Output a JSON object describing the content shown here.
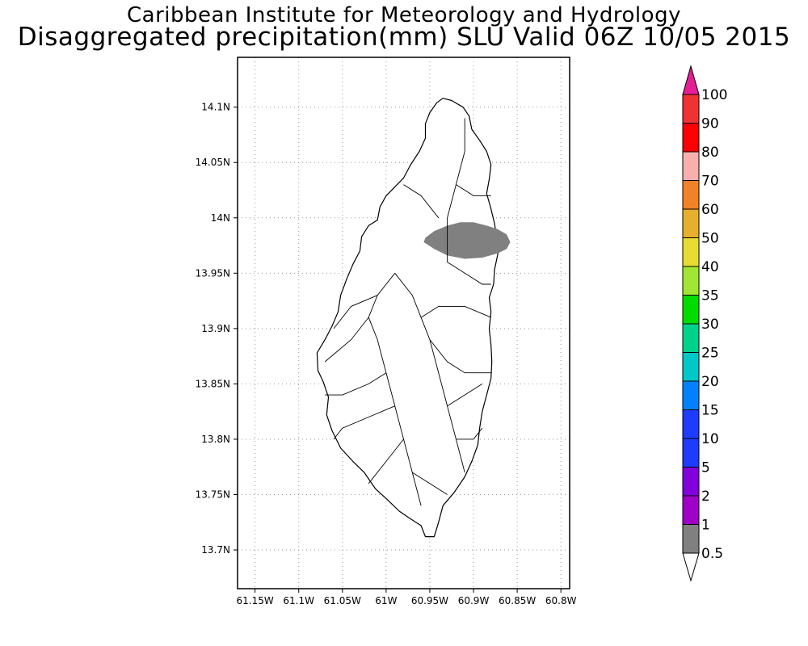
{
  "title_line1": "Caribbean Institute for Meteorology and Hydrology",
  "title_line2": "Disaggregated precipitation(mm) SLU Valid 06Z 10/05 2015",
  "map": {
    "lon_range": [
      -61.17,
      -60.79
    ],
    "lat_range": [
      13.665,
      14.145
    ],
    "lon_ticks": [
      {
        "value": -61.15,
        "label": "61.15W"
      },
      {
        "value": -61.1,
        "label": "61.1W"
      },
      {
        "value": -61.05,
        "label": "61.05W"
      },
      {
        "value": -61.0,
        "label": "61W"
      },
      {
        "value": -60.95,
        "label": "60.95W"
      },
      {
        "value": -60.9,
        "label": "60.9W"
      },
      {
        "value": -60.85,
        "label": "60.85W"
      },
      {
        "value": -60.8,
        "label": "60.8W"
      }
    ],
    "lat_ticks": [
      {
        "value": 14.1,
        "label": "14.1N"
      },
      {
        "value": 14.05,
        "label": "14.05N"
      },
      {
        "value": 14.0,
        "label": "14N"
      },
      {
        "value": 13.95,
        "label": "13.95N"
      },
      {
        "value": 13.9,
        "label": "13.9N"
      },
      {
        "value": 13.85,
        "label": "13.85N"
      },
      {
        "value": 13.8,
        "label": "13.8N"
      },
      {
        "value": 13.75,
        "label": "13.75N"
      },
      {
        "value": 13.7,
        "label": "13.7N"
      }
    ],
    "grid": "dotted",
    "island_outline": [
      [
        -60.935,
        14.108
      ],
      [
        -60.925,
        14.106
      ],
      [
        -60.912,
        14.1
      ],
      [
        -60.905,
        14.092
      ],
      [
        -60.902,
        14.08
      ],
      [
        -60.893,
        14.07
      ],
      [
        -60.885,
        14.06
      ],
      [
        -60.88,
        14.048
      ],
      [
        -60.882,
        14.035
      ],
      [
        -60.885,
        14.022
      ],
      [
        -60.88,
        14.008
      ],
      [
        -60.876,
        13.995
      ],
      [
        -60.873,
        13.98
      ],
      [
        -60.872,
        13.968
      ],
      [
        -60.876,
        13.953
      ],
      [
        -60.877,
        13.94
      ],
      [
        -60.882,
        13.928
      ],
      [
        -60.88,
        13.915
      ],
      [
        -60.882,
        13.9
      ],
      [
        -60.88,
        13.885
      ],
      [
        -60.879,
        13.87
      ],
      [
        -60.88,
        13.855
      ],
      [
        -60.885,
        13.84
      ],
      [
        -60.89,
        13.825
      ],
      [
        -60.893,
        13.81
      ],
      [
        -60.895,
        13.795
      ],
      [
        -60.902,
        13.78
      ],
      [
        -60.91,
        13.766
      ],
      [
        -60.922,
        13.752
      ],
      [
        -60.935,
        13.74
      ],
      [
        -60.94,
        13.725
      ],
      [
        -60.945,
        13.712
      ],
      [
        -60.955,
        13.712
      ],
      [
        -60.96,
        13.722
      ],
      [
        -60.972,
        13.728
      ],
      [
        -60.985,
        13.735
      ],
      [
        -60.998,
        13.745
      ],
      [
        -61.012,
        13.755
      ],
      [
        -61.025,
        13.77
      ],
      [
        -61.038,
        13.78
      ],
      [
        -61.052,
        13.792
      ],
      [
        -61.062,
        13.808
      ],
      [
        -61.068,
        13.822
      ],
      [
        -61.066,
        13.838
      ],
      [
        -61.072,
        13.852
      ],
      [
        -61.078,
        13.862
      ],
      [
        -61.079,
        13.878
      ],
      [
        -61.07,
        13.89
      ],
      [
        -61.062,
        13.902
      ],
      [
        -61.055,
        13.915
      ],
      [
        -61.052,
        13.93
      ],
      [
        -61.045,
        13.945
      ],
      [
        -61.038,
        13.958
      ],
      [
        -61.03,
        13.97
      ],
      [
        -61.028,
        13.983
      ],
      [
        -61.02,
        13.993
      ],
      [
        -61.01,
        13.998
      ],
      [
        -61.007,
        14.01
      ],
      [
        -61.0,
        14.02
      ],
      [
        -60.99,
        14.028
      ],
      [
        -60.98,
        14.036
      ],
      [
        -60.972,
        14.048
      ],
      [
        -60.962,
        14.06
      ],
      [
        -60.955,
        14.072
      ],
      [
        -60.955,
        14.085
      ],
      [
        -60.95,
        14.095
      ],
      [
        -60.942,
        14.104
      ]
    ],
    "precip_area": {
      "class_mm": "0.5-1",
      "color": "#808080",
      "polygon": [
        [
          -60.955,
          13.982
        ],
        [
          -60.945,
          13.988
        ],
        [
          -60.93,
          13.993
        ],
        [
          -60.915,
          13.996
        ],
        [
          -60.9,
          13.996
        ],
        [
          -60.885,
          13.993
        ],
        [
          -60.873,
          13.99
        ],
        [
          -60.862,
          13.985
        ],
        [
          -60.858,
          13.978
        ],
        [
          -60.862,
          13.972
        ],
        [
          -60.872,
          13.968
        ],
        [
          -60.89,
          13.964
        ],
        [
          -60.91,
          13.963
        ],
        [
          -60.93,
          13.966
        ],
        [
          -60.945,
          13.972
        ],
        [
          -60.957,
          13.978
        ]
      ]
    },
    "rivers": [
      [
        [
          -60.99,
          13.95
        ],
        [
          -60.97,
          13.93
        ],
        [
          -60.96,
          13.91
        ],
        [
          -60.95,
          13.89
        ]
      ],
      [
        [
          -60.99,
          13.95
        ],
        [
          -61.01,
          13.93
        ],
        [
          -61.02,
          13.91
        ],
        [
          -61.01,
          13.89
        ],
        [
          -61.0,
          13.86
        ]
      ],
      [
        [
          -60.95,
          13.89
        ],
        [
          -60.93,
          13.87
        ],
        [
          -60.91,
          13.86
        ],
        [
          -60.88,
          13.86
        ]
      ],
      [
        [
          -61.0,
          13.86
        ],
        [
          -61.02,
          13.85
        ],
        [
          -61.05,
          13.84
        ],
        [
          -61.07,
          13.84
        ]
      ],
      [
        [
          -61.0,
          13.86
        ],
        [
          -60.99,
          13.83
        ],
        [
          -60.98,
          13.8
        ],
        [
          -60.97,
          13.77
        ],
        [
          -60.96,
          13.74
        ]
      ],
      [
        [
          -60.95,
          13.89
        ],
        [
          -60.94,
          13.86
        ],
        [
          -60.93,
          13.83
        ],
        [
          -60.92,
          13.8
        ],
        [
          -60.91,
          13.77
        ]
      ],
      [
        [
          -60.93,
          13.96
        ],
        [
          -60.91,
          13.95
        ],
        [
          -60.89,
          13.94
        ],
        [
          -60.88,
          13.94
        ]
      ],
      [
        [
          -60.93,
          13.96
        ],
        [
          -60.93,
          14.0
        ],
        [
          -60.92,
          14.03
        ],
        [
          -60.91,
          14.06
        ],
        [
          -60.91,
          14.09
        ]
      ],
      [
        [
          -60.92,
          14.03
        ],
        [
          -60.9,
          14.02
        ],
        [
          -60.88,
          14.02
        ]
      ],
      [
        [
          -60.94,
          14.0
        ],
        [
          -60.96,
          14.02
        ],
        [
          -60.98,
          14.03
        ]
      ],
      [
        [
          -60.96,
          13.91
        ],
        [
          -60.94,
          13.92
        ],
        [
          -60.91,
          13.92
        ],
        [
          -60.88,
          13.91
        ]
      ],
      [
        [
          -61.01,
          13.93
        ],
        [
          -61.04,
          13.92
        ],
        [
          -61.06,
          13.9
        ]
      ],
      [
        [
          -61.02,
          13.91
        ],
        [
          -61.04,
          13.89
        ],
        [
          -61.07,
          13.87
        ]
      ],
      [
        [
          -60.99,
          13.83
        ],
        [
          -61.02,
          13.82
        ],
        [
          -61.05,
          13.81
        ],
        [
          -61.06,
          13.8
        ]
      ],
      [
        [
          -60.98,
          13.8
        ],
        [
          -61.0,
          13.78
        ],
        [
          -61.02,
          13.76
        ]
      ],
      [
        [
          -60.92,
          13.8
        ],
        [
          -60.9,
          13.8
        ],
        [
          -60.89,
          13.81
        ]
      ],
      [
        [
          -60.93,
          13.83
        ],
        [
          -60.91,
          13.84
        ],
        [
          -60.89,
          13.85
        ]
      ],
      [
        [
          -60.97,
          13.77
        ],
        [
          -60.95,
          13.76
        ],
        [
          -60.93,
          13.75
        ]
      ]
    ]
  },
  "colorbar": {
    "levels": [
      {
        "color": "#808080",
        "label": "0.5"
      },
      {
        "color": "#a000c8",
        "label": "1"
      },
      {
        "color": "#8200dc",
        "label": "2"
      },
      {
        "color": "#1e3cff",
        "label": "5"
      },
      {
        "color": "#1e3cff",
        "label": "10"
      },
      {
        "color": "#0082ff",
        "label": "15"
      },
      {
        "color": "#00c8c8",
        "label": "20"
      },
      {
        "color": "#00d28c",
        "label": "25"
      },
      {
        "color": "#00dc00",
        "label": "30"
      },
      {
        "color": "#a0e632",
        "label": "35"
      },
      {
        "color": "#e6dc32",
        "label": "40"
      },
      {
        "color": "#e6af2d",
        "label": "50"
      },
      {
        "color": "#f08228",
        "label": "60"
      },
      {
        "color": "#faafaf",
        "label": "70"
      },
      {
        "color": "#ff0000",
        "label": "80"
      },
      {
        "color": "#f03232",
        "label": "90"
      },
      {
        "color": "#f03c3c",
        "label": "100"
      }
    ],
    "over_color": "#e61e96",
    "under_color": "#ffffff"
  }
}
